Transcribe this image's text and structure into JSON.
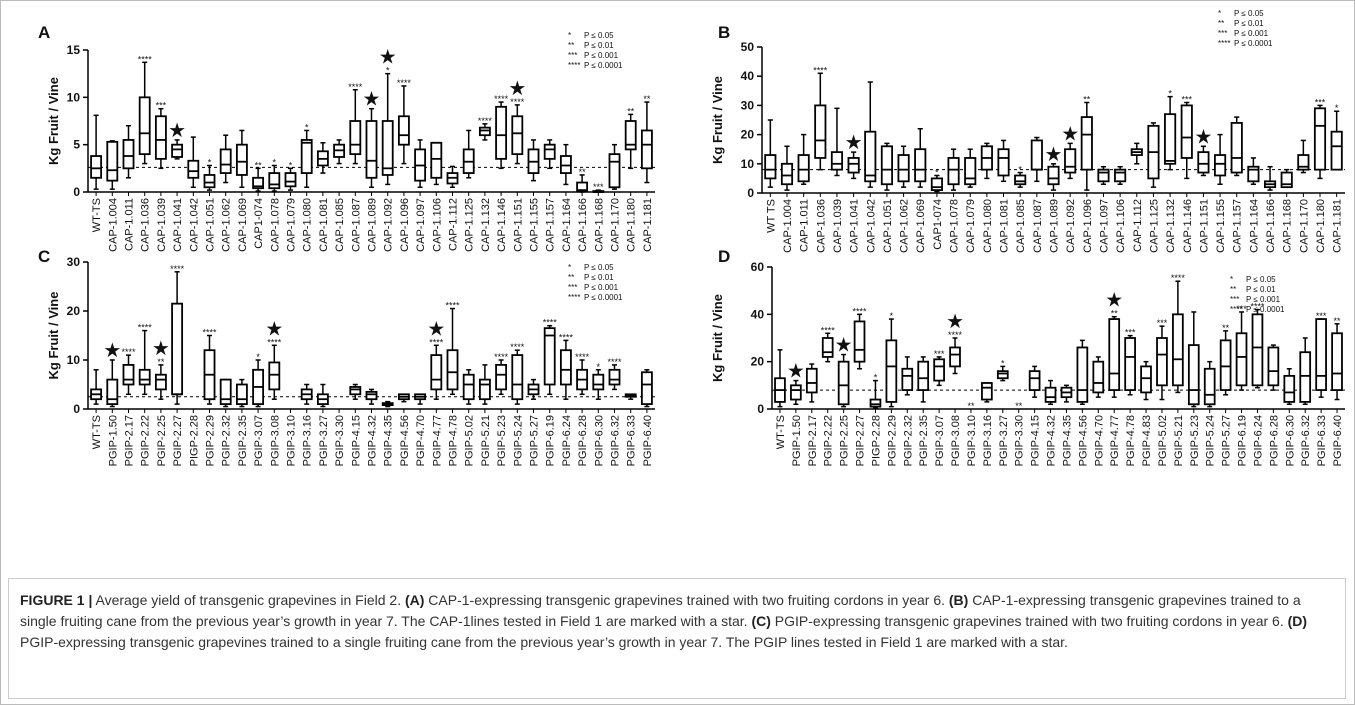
{
  "chart_data": [
    {
      "type": "box",
      "panel": "A",
      "ylabel": "Kg Fruit / Vine",
      "ylim": [
        0,
        15
      ],
      "yticks": [
        0,
        5,
        10,
        15
      ],
      "reference_line": 2.6,
      "star_symbol": "★",
      "key": [
        {
          "symbol": "*",
          "text": "P ≤ 0.05"
        },
        {
          "symbol": "**",
          "text": "P ≤ 0.01"
        },
        {
          "symbol": "***",
          "text": "P ≤ 0.001"
        },
        {
          "symbol": "****",
          "text": "P ≤ 0.0001"
        }
      ],
      "categories": [
        "WT-TS",
        "CAP-1.004",
        "CAP-1.011",
        "CAP-1.036",
        "CAP-1.039",
        "CAP-1.041",
        "CAP-1.042",
        "CAP-1.051",
        "CAP-1.062",
        "CAP-1.069",
        "CAP1-074",
        "CAP-1.078",
        "CAP-1.079",
        "CAP-1.080",
        "CAP-1.081",
        "CAP-1.085",
        "CAP-1.087",
        "CAP-1.089",
        "CAP-1.092",
        "CAP-1.096",
        "CAP-1.097",
        "CAP-1.106",
        "CAP-1.112",
        "CAP-1.125",
        "CAP-1.132",
        "CAP-1.146",
        "CAP-1.151",
        "CAP-1.155",
        "CAP-1.157",
        "CAP-1.164",
        "CAP-1.166",
        "CAP-1.168",
        "CAP-1.170",
        "CAP-1.180",
        "CAP-1.181"
      ],
      "whisker_low": [
        0.3,
        0.3,
        1.5,
        3.0,
        2.5,
        3.5,
        0.5,
        0.2,
        1.0,
        0.5,
        0.1,
        0.1,
        0.2,
        0.5,
        2.0,
        3.0,
        3.0,
        0.5,
        0.8,
        3.0,
        0.5,
        0.8,
        0.5,
        1.5,
        5.5,
        2.5,
        3.0,
        1.2,
        2.5,
        0.8,
        0.0,
        0.0,
        0.3,
        2.5,
        1.0
      ],
      "q1": [
        1.5,
        1.2,
        2.5,
        4.0,
        3.5,
        3.7,
        1.5,
        0.5,
        2.0,
        1.8,
        0.4,
        0.4,
        0.6,
        2.0,
        2.8,
        3.7,
        4.0,
        1.5,
        1.8,
        5.0,
        1.2,
        1.5,
        0.9,
        2.0,
        6.0,
        3.5,
        4.0,
        2.0,
        3.5,
        2.0,
        0.1,
        0.0,
        0.5,
        4.5,
        2.5
      ],
      "median": [
        2.5,
        2.3,
        3.8,
        6.2,
        5.5,
        4.5,
        2.2,
        1.0,
        2.9,
        3.2,
        0.6,
        0.8,
        1.1,
        5.2,
        3.5,
        4.4,
        5.0,
        3.3,
        2.5,
        6.0,
        2.8,
        3.5,
        1.5,
        3.2,
        6.5,
        6.0,
        6.2,
        3.2,
        4.5,
        2.8,
        0.2,
        0.0,
        3.2,
        5.0,
        5.0
      ],
      "q3": [
        3.8,
        5.3,
        5.5,
        10.0,
        8.0,
        5.0,
        3.3,
        1.8,
        4.5,
        5.0,
        1.5,
        2.0,
        2.0,
        5.5,
        4.3,
        5.0,
        7.5,
        7.5,
        7.5,
        8.0,
        4.5,
        5.2,
        2.0,
        4.5,
        6.8,
        9.0,
        8.0,
        4.5,
        5.0,
        3.8,
        1.0,
        0.1,
        4.0,
        7.5,
        6.5
      ],
      "whisker_high": [
        8.1,
        5.4,
        7.0,
        13.7,
        8.8,
        5.5,
        5.8,
        2.8,
        6.0,
        6.5,
        2.5,
        2.8,
        2.5,
        6.5,
        5.2,
        5.5,
        10.8,
        8.8,
        12.5,
        11.2,
        5.5,
        5.2,
        2.7,
        6.5,
        7.2,
        9.5,
        9.2,
        5.5,
        5.5,
        5.0,
        1.8,
        0.2,
        5.0,
        8.2,
        9.5
      ],
      "annotations": [
        null,
        null,
        null,
        "****",
        "***",
        null,
        null,
        "*",
        null,
        null,
        "**",
        "*",
        "*",
        "*",
        null,
        null,
        "****",
        null,
        "*",
        "****",
        null,
        null,
        null,
        null,
        "****",
        "****",
        "****",
        null,
        null,
        null,
        "**",
        "***",
        null,
        "**",
        "**"
      ],
      "starred": [
        false,
        false,
        false,
        false,
        false,
        true,
        false,
        false,
        false,
        false,
        false,
        false,
        false,
        false,
        false,
        false,
        false,
        true,
        true,
        false,
        false,
        false,
        false,
        false,
        false,
        false,
        true,
        false,
        false,
        false,
        false,
        false,
        false,
        false,
        false
      ]
    },
    {
      "type": "box",
      "panel": "B",
      "ylabel": "Kg Fruit / Vine",
      "ylim": [
        0,
        50
      ],
      "yticks": [
        0,
        10,
        20,
        30,
        40,
        50
      ],
      "reference_line": 8,
      "star_symbol": "★",
      "key": [
        {
          "symbol": "*",
          "text": "P ≤ 0.05"
        },
        {
          "symbol": "**",
          "text": "P ≤ 0.01"
        },
        {
          "symbol": "***",
          "text": "P ≤ 0.001"
        },
        {
          "symbol": "****",
          "text": "P ≤ 0.0001"
        }
      ],
      "categories": [
        "WT TS",
        "CAP-1.004",
        "CAP-1.011",
        "CAP-1.036",
        "CAP-1.039",
        "CAP-1.041",
        "CAP-1.042",
        "CAP-1.051",
        "CAP-1.062",
        "CAP-1.069",
        "CAP1-074",
        "CAP-1.078",
        "CAP-1.079",
        "CAP-1.080",
        "CAP-1.081",
        "CAP-1.085",
        "CAP-1.087",
        "CAP-1.089",
        "CAP-1.092",
        "CAP-1.096",
        "CAP-1.097",
        "CAP-1.106",
        "CAP-1.112",
        "CAP-1.125",
        "CAP-1.132",
        "CAP-1.146",
        "CAP-1.151",
        "CAP-1.155",
        "CAP-1.157",
        "CAP-1.164",
        "CAP-1.166",
        "CAP-1.168",
        "CAP-1.170",
        "CAP-1.180",
        "CAP-1.181"
      ],
      "whisker_low": [
        2,
        1,
        3,
        8,
        6,
        5,
        2,
        1,
        2,
        2,
        0.5,
        1,
        2,
        5,
        4,
        2,
        4,
        1,
        5,
        1,
        3,
        3,
        10,
        2,
        8,
        5,
        6,
        3,
        6,
        3,
        1,
        2,
        7,
        5,
        8
      ],
      "q1": [
        5,
        3,
        4,
        12,
        8,
        7,
        4,
        3,
        4,
        4,
        1,
        3,
        3,
        8,
        6,
        3,
        8,
        3,
        7,
        8,
        4,
        4,
        13,
        5,
        10,
        12,
        7,
        6,
        7,
        4,
        2,
        2,
        8,
        8,
        8
      ],
      "median": [
        8,
        6,
        8,
        18,
        10,
        10,
        6,
        8,
        8,
        8,
        2,
        8,
        5,
        12,
        12,
        4,
        8,
        5,
        9,
        20,
        7,
        7,
        14,
        14,
        11,
        19,
        10,
        10,
        12,
        8,
        3,
        3,
        9,
        23,
        16
      ],
      "q3": [
        13,
        10,
        13,
        30,
        14,
        12,
        21,
        16,
        13,
        15,
        5,
        12,
        12,
        16,
        15,
        6,
        18,
        9,
        15,
        26,
        8,
        8,
        15,
        23,
        27,
        30,
        14,
        13,
        24,
        9,
        4,
        7,
        13,
        29,
        21
      ],
      "whisker_high": [
        25,
        16,
        20,
        41,
        29,
        14,
        38,
        17,
        16,
        22,
        6,
        15,
        15,
        17,
        18,
        7,
        19,
        10,
        17,
        31,
        9,
        9,
        17,
        24,
        33,
        31,
        16,
        20,
        26,
        12,
        9,
        8,
        18,
        30,
        28
      ],
      "annotations": [
        null,
        null,
        null,
        "****",
        null,
        null,
        null,
        null,
        null,
        null,
        "*",
        null,
        null,
        null,
        null,
        "*",
        null,
        null,
        null,
        "**",
        null,
        null,
        null,
        null,
        "*",
        "***",
        null,
        null,
        null,
        null,
        null,
        null,
        null,
        "***",
        "*"
      ],
      "starred": [
        false,
        false,
        false,
        false,
        false,
        true,
        false,
        false,
        false,
        false,
        false,
        false,
        false,
        false,
        false,
        false,
        false,
        true,
        true,
        false,
        false,
        false,
        false,
        false,
        false,
        false,
        true,
        false,
        false,
        false,
        false,
        false,
        false,
        false,
        false
      ]
    },
    {
      "type": "box",
      "panel": "C",
      "ylabel": "Kg Fruit / Vine",
      "ylim": [
        0,
        30
      ],
      "yticks": [
        0,
        10,
        20,
        30
      ],
      "reference_line": 2.5,
      "star_symbol": "★",
      "key": [
        {
          "symbol": "*",
          "text": "P ≤ 0.05"
        },
        {
          "symbol": "**",
          "text": "P ≤ 0.01"
        },
        {
          "symbol": "***",
          "text": "P ≤ 0.001"
        },
        {
          "symbol": "****",
          "text": "P ≤ 0.0001"
        }
      ],
      "categories": [
        "WT-TS",
        "PGIP-1.50",
        "PGIP-2.17",
        "PGIP-2.22",
        "PGIP-2.25",
        "PGIP-2.27",
        "PIGP-2.28",
        "PGIP-2.29",
        "PGIP-2.32",
        "PGIP-2.35",
        "PGIP-3.07",
        "PGIP-3.08",
        "PGIP-3.10",
        "PGIP-3.16",
        "PGIP-3.27",
        "PGIP-3.30",
        "PGIP-4.15",
        "PGIP-4.32",
        "PGIP-4.35",
        "PGIP-4.56",
        "PGIP-4.70",
        "PGIP-4.77",
        "PGIP-4.78",
        "PGIP-5.02",
        "PGIP-5.21",
        "PGIP-5.23",
        "PGIP-5.24",
        "PGIP-5.27",
        "PGIP-6.19",
        "PGIP-6.24",
        "PGIP-6.28",
        "PGIP-6.30",
        "PGIP-6.32",
        "PGIP-6.33",
        "PGIP-6.40"
      ],
      "whisker_low": [
        1,
        0.5,
        3,
        3,
        2,
        1,
        null,
        1,
        0.5,
        0.5,
        0.5,
        2,
        null,
        1,
        0.5,
        null,
        2,
        1,
        0.5,
        1.5,
        1,
        2,
        3,
        1,
        1,
        3,
        1,
        2,
        3,
        2,
        3,
        2,
        4,
        2,
        0.5
      ],
      "q1": [
        2,
        1,
        5,
        5,
        4,
        3,
        null,
        2,
        1,
        1,
        1,
        4,
        null,
        2,
        1,
        null,
        3,
        2,
        0.8,
        2,
        2,
        4,
        4,
        2,
        2,
        4,
        2,
        3,
        5,
        5,
        4,
        4,
        5,
        2.5,
        1
      ],
      "median": [
        3,
        2,
        6,
        6,
        6,
        3,
        null,
        7,
        2,
        2,
        4.5,
        7,
        null,
        3,
        2,
        null,
        4,
        3,
        1,
        2.5,
        2.5,
        6,
        7.5,
        5,
        5,
        7,
        5,
        4,
        15,
        8,
        6,
        5,
        6,
        2.8,
        5
      ],
      "q3": [
        4,
        6,
        9,
        8,
        7,
        21.5,
        null,
        12,
        6,
        5,
        8,
        9.5,
        null,
        4,
        3,
        null,
        4.5,
        3.5,
        1.2,
        3,
        3,
        11,
        12,
        7,
        6,
        9,
        11,
        5,
        16.5,
        12,
        8,
        7,
        8,
        3,
        7.5
      ],
      "whisker_high": [
        8,
        10,
        11,
        16,
        9,
        28,
        null,
        15,
        6,
        6,
        10,
        13,
        null,
        5,
        5,
        null,
        5,
        4,
        1.5,
        3,
        3,
        13,
        20.5,
        8,
        9,
        10,
        12,
        6,
        17,
        14,
        10,
        8,
        9,
        3,
        8
      ],
      "annotations": [
        null,
        null,
        "****",
        "****",
        "**",
        "****",
        null,
        "****",
        null,
        null,
        "*",
        "****",
        null,
        null,
        null,
        null,
        null,
        null,
        null,
        null,
        null,
        "****",
        "****",
        null,
        null,
        "****",
        "****",
        null,
        "****",
        "****",
        "****",
        "*",
        "****",
        null,
        null
      ],
      "starred": [
        false,
        true,
        false,
        false,
        true,
        false,
        false,
        false,
        false,
        false,
        false,
        true,
        false,
        false,
        false,
        false,
        false,
        false,
        false,
        false,
        false,
        true,
        false,
        false,
        false,
        false,
        false,
        false,
        false,
        false,
        false,
        false,
        false,
        false,
        false
      ]
    },
    {
      "type": "box",
      "panel": "D",
      "ylabel": "Kg Fruit / Vine",
      "ylim": [
        0,
        60
      ],
      "yticks": [
        0,
        20,
        40,
        60
      ],
      "reference_line": 8,
      "star_symbol": "★",
      "key": [
        {
          "symbol": "*",
          "text": "P ≤ 0.05"
        },
        {
          "symbol": "**",
          "text": "P ≤ 0.01"
        },
        {
          "symbol": "***",
          "text": "P ≤ 0.001"
        },
        {
          "symbol": "****",
          "text": "P ≤ 0.0001"
        }
      ],
      "categories": [
        "WT-TS",
        "PGIP-1.50",
        "PGIP-2.17",
        "PGIP-2.22",
        "PGIP-2.25",
        "PGIP-2.27",
        "PIGP-2.28",
        "PGIP-2.29",
        "PGIP-2.32",
        "PGIP-2.35",
        "PGIP-3.07",
        "PGIP-3.08",
        "PGIP-3.10",
        "PGIP-3.16",
        "PGIP-3.27",
        "PGIP-3.30",
        "PGIP-4.15",
        "PGIP-4.32",
        "PGIP-4.35",
        "PGIP-4.56",
        "PGIP-4.70",
        "PGIP-4.77",
        "PGIP-4.78",
        "PGIP-4.83",
        "PGIP-5.02",
        "PGIP-5.21",
        "PGIP-5.23",
        "PGIP-5.24",
        "PGIP-5.27",
        "PGIP-6.19",
        "PGIP-6.24",
        "PGIP-6.28",
        "PGIP-6.30",
        "PGIP-6.32",
        "PGIP-6.33",
        "PGIP-6.40"
      ],
      "whisker_low": [
        1,
        2,
        3,
        20,
        1,
        17,
        0.5,
        1,
        6,
        3,
        10,
        15,
        null,
        3,
        12,
        null,
        5,
        2,
        3,
        2,
        5,
        5,
        6,
        4,
        4,
        7,
        1,
        1,
        6,
        8,
        9,
        8,
        2,
        2,
        5,
        4
      ],
      "q1": [
        3,
        4,
        7,
        22,
        2,
        20,
        1,
        3,
        8,
        8,
        12,
        18,
        null,
        4,
        13,
        null,
        8,
        3,
        5,
        3,
        7,
        8,
        8,
        7,
        10,
        10,
        2,
        2,
        8,
        10,
        10,
        10,
        3,
        3,
        8,
        8
      ],
      "median": [
        8,
        8,
        11,
        24,
        10,
        25,
        2,
        18,
        14,
        13,
        18,
        23,
        null,
        9,
        15,
        null,
        13,
        5,
        7,
        8,
        11,
        15,
        22,
        13,
        23,
        21,
        8,
        6,
        18,
        22,
        26,
        16,
        7,
        14,
        14,
        15
      ],
      "q3": [
        13,
        10,
        17,
        30,
        20,
        37,
        4,
        29,
        17,
        20,
        21,
        26,
        null,
        11,
        16,
        null,
        16,
        9,
        9,
        26,
        20,
        38,
        30,
        18,
        30,
        40,
        27,
        17,
        29,
        32,
        40,
        26,
        14,
        24,
        38,
        32
      ],
      "whisker_high": [
        25,
        12,
        19,
        32,
        23,
        40,
        12,
        38,
        22,
        22,
        22,
        30,
        null,
        11,
        18,
        null,
        18,
        12,
        10,
        29,
        22,
        39,
        31,
        20,
        35,
        54,
        41,
        20,
        33,
        41,
        42,
        27,
        17,
        30,
        38,
        36
      ],
      "annotations": [
        null,
        null,
        null,
        "****",
        null,
        "****",
        "*",
        "*",
        null,
        null,
        "***",
        "****",
        "**",
        null,
        "*",
        "**",
        null,
        null,
        null,
        null,
        null,
        "**",
        "***",
        null,
        "***",
        "****",
        null,
        null,
        "**",
        "***",
        "****",
        null,
        null,
        null,
        "***",
        "**"
      ],
      "starred": [
        false,
        true,
        false,
        false,
        true,
        false,
        false,
        false,
        false,
        false,
        false,
        true,
        false,
        false,
        false,
        false,
        false,
        false,
        false,
        false,
        false,
        true,
        false,
        false,
        false,
        false,
        false,
        false,
        false,
        false,
        false,
        false,
        false,
        false,
        false,
        false
      ]
    }
  ],
  "caption": {
    "label": "FIGURE 1 |",
    "parts": [
      {
        "text": " Average yield of transgenic grapevines in Field 2. ",
        "bold": false
      },
      {
        "text": "(A)",
        "bold": true
      },
      {
        "text": " CAP-1-expressing transgenic grapevines trained with two fruiting cordons in year 6. ",
        "bold": false
      },
      {
        "text": "(B)",
        "bold": true
      },
      {
        "text": " CAP-1-expressing transgenic grapevines trained to a single fruiting cane from the previous year’s growth in year 7. The CAP-1lines tested in Field 1 are marked with a star. ",
        "bold": false
      },
      {
        "text": "(C)",
        "bold": true
      },
      {
        "text": " PGIP-expressing transgenic grapevines trained with two fruiting cordons in year 6. ",
        "bold": false
      },
      {
        "text": "(D)",
        "bold": true
      },
      {
        "text": " PGIP-expressing transgenic grapevines trained to a single fruiting cane from the previous year’s growth in year 7. The PGIP lines tested in Field 1 are marked with a star.",
        "bold": false
      }
    ]
  }
}
